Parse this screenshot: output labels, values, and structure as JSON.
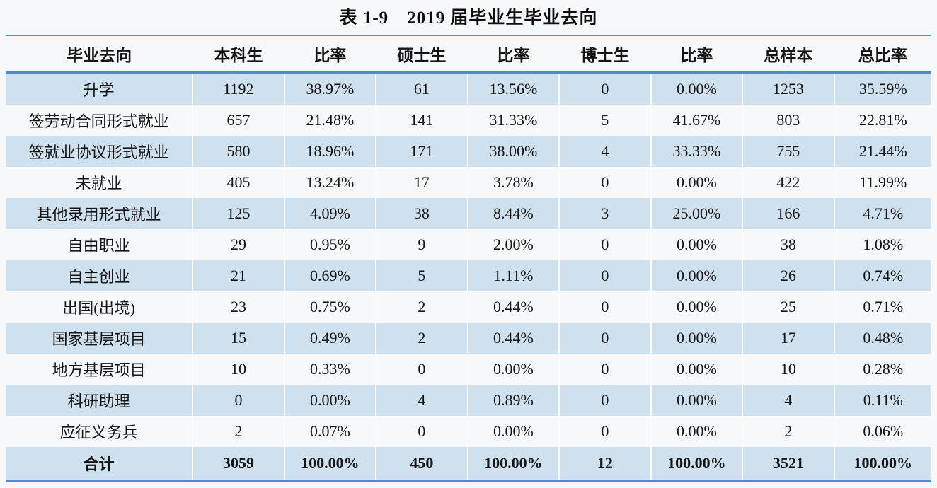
{
  "title": "表 1-9　2019 届毕业生毕业去向",
  "table": {
    "columns": [
      "毕业去向",
      "本科生",
      "比率",
      "硕士生",
      "比率",
      "博士生",
      "比率",
      "总样本",
      "总比率"
    ],
    "rows": [
      [
        "升学",
        "1192",
        "38.97%",
        "61",
        "13.56%",
        "0",
        "0.00%",
        "1253",
        "35.59%"
      ],
      [
        "签劳动合同形式就业",
        "657",
        "21.48%",
        "141",
        "31.33%",
        "5",
        "41.67%",
        "803",
        "22.81%"
      ],
      [
        "签就业协议形式就业",
        "580",
        "18.96%",
        "171",
        "38.00%",
        "4",
        "33.33%",
        "755",
        "21.44%"
      ],
      [
        "未就业",
        "405",
        "13.24%",
        "17",
        "3.78%",
        "0",
        "0.00%",
        "422",
        "11.99%"
      ],
      [
        "其他录用形式就业",
        "125",
        "4.09%",
        "38",
        "8.44%",
        "3",
        "25.00%",
        "166",
        "4.71%"
      ],
      [
        "自由职业",
        "29",
        "0.95%",
        "9",
        "2.00%",
        "0",
        "0.00%",
        "38",
        "1.08%"
      ],
      [
        "自主创业",
        "21",
        "0.69%",
        "5",
        "1.11%",
        "0",
        "0.00%",
        "26",
        "0.74%"
      ],
      [
        "出国(出境)",
        "23",
        "0.75%",
        "2",
        "0.44%",
        "0",
        "0.00%",
        "25",
        "0.71%"
      ],
      [
        "国家基层项目",
        "15",
        "0.49%",
        "2",
        "0.44%",
        "0",
        "0.00%",
        "17",
        "0.48%"
      ],
      [
        "地方基层项目",
        "10",
        "0.33%",
        "0",
        "0.00%",
        "0",
        "0.00%",
        "10",
        "0.28%"
      ],
      [
        "科研助理",
        "0",
        "0.00%",
        "4",
        "0.89%",
        "0",
        "0.00%",
        "4",
        "0.11%"
      ],
      [
        "应征义务兵",
        "2",
        "0.07%",
        "0",
        "0.00%",
        "0",
        "0.00%",
        "2",
        "0.06%"
      ]
    ],
    "total_row": [
      "合计",
      "3059",
      "100.00%",
      "450",
      "100.00%",
      "12",
      "100.00%",
      "3521",
      "100.00%"
    ]
  },
  "colors": {
    "stripe_blue": "#cfe0ef",
    "rule_blue": "#4e8cc9",
    "rule_light_blue": "#9cc2e5",
    "page_background": "#f7f8fa",
    "text": "#141414"
  }
}
